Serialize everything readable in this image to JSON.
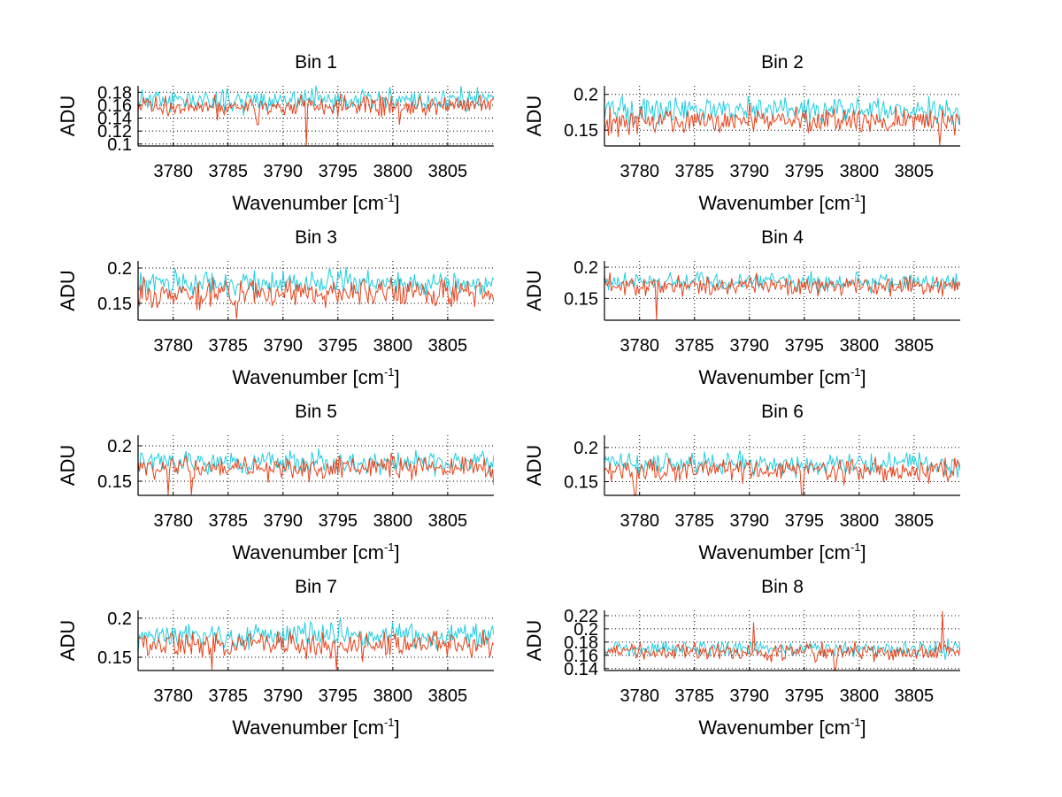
{
  "figure": {
    "colors": {
      "series1": "#1fcde0",
      "series2": "#e8431c",
      "axis": "#000000",
      "grid": "#000000"
    }
  },
  "chart_data": [
    {
      "type": "line",
      "title": "Bin 1",
      "xlabel": "Wavenumber [cm",
      "xlabel_sup": "-1",
      "xlabel_end": "]",
      "ylabel": "ADU",
      "xlim": [
        3776.8,
        3809.2
      ],
      "ylim": [
        0.097,
        0.19
      ],
      "xticks": [
        "3780",
        "3785",
        "3790",
        "3795",
        "3800",
        "3805"
      ],
      "xtick_values": [
        3780,
        3785,
        3790,
        3795,
        3800,
        3805
      ],
      "yticks": [
        "0.1",
        "0.12",
        "0.14",
        "0.16",
        "0.18"
      ],
      "ytick_values": [
        0.1,
        0.12,
        0.14,
        0.16,
        0.18
      ],
      "grid": true,
      "series": [
        {
          "name": "cyan",
          "mean": 0.168,
          "noise": 0.011,
          "seed": 11,
          "dips": []
        },
        {
          "name": "red",
          "mean": 0.158,
          "noise": 0.01,
          "seed": 12,
          "dips": [
            [
              3792.1,
              0.097
            ],
            [
              3787.7,
              0.13
            ],
            [
              3800.6,
              0.13
            ]
          ]
        }
      ]
    },
    {
      "type": "line",
      "title": "Bin 2",
      "xlabel": "Wavenumber [cm",
      "xlabel_sup": "-1",
      "xlabel_end": "]",
      "ylabel": "ADU",
      "xlim": [
        3776.8,
        3809.2
      ],
      "ylim": [
        0.128,
        0.212
      ],
      "xticks": [
        "3780",
        "3785",
        "3790",
        "3795",
        "3800",
        "3805"
      ],
      "xtick_values": [
        3780,
        3785,
        3790,
        3795,
        3800,
        3805
      ],
      "yticks": [
        "0.15",
        "0.2"
      ],
      "ytick_values": [
        0.15,
        0.2
      ],
      "grid": true,
      "series": [
        {
          "name": "cyan",
          "mean": 0.178,
          "noise": 0.011,
          "seed": 21,
          "dips": []
        },
        {
          "name": "red",
          "mean": 0.163,
          "noise": 0.011,
          "seed": 22,
          "dips": [
            [
              3807.3,
              0.129
            ]
          ]
        }
      ]
    },
    {
      "type": "line",
      "title": "Bin 3",
      "xlabel": "Wavenumber [cm",
      "xlabel_sup": "-1",
      "xlabel_end": "]",
      "ylabel": "ADU",
      "xlim": [
        3776.8,
        3809.2
      ],
      "ylim": [
        0.126,
        0.21
      ],
      "xticks": [
        "3780",
        "3785",
        "3790",
        "3795",
        "3800",
        "3805"
      ],
      "xtick_values": [
        3780,
        3785,
        3790,
        3795,
        3800,
        3805
      ],
      "yticks": [
        "0.15",
        "0.2"
      ],
      "ytick_values": [
        0.15,
        0.2
      ],
      "grid": true,
      "series": [
        {
          "name": "cyan",
          "mean": 0.178,
          "noise": 0.011,
          "seed": 31,
          "dips": []
        },
        {
          "name": "red",
          "mean": 0.165,
          "noise": 0.012,
          "seed": 32,
          "dips": [
            [
              3785.8,
              0.128
            ]
          ]
        }
      ]
    },
    {
      "type": "line",
      "title": "Bin 4",
      "xlabel": "Wavenumber [cm",
      "xlabel_sup": "-1",
      "xlabel_end": "]",
      "ylabel": "ADU",
      "xlim": [
        3776.8,
        3809.2
      ],
      "ylim": [
        0.115,
        0.21
      ],
      "xticks": [
        "3780",
        "3785",
        "3790",
        "3795",
        "3800",
        "3805"
      ],
      "xtick_values": [
        3780,
        3785,
        3790,
        3795,
        3800,
        3805
      ],
      "yticks": [
        "0.15",
        "0.2"
      ],
      "ytick_values": [
        0.15,
        0.2
      ],
      "grid": true,
      "series": [
        {
          "name": "cyan",
          "mean": 0.176,
          "noise": 0.009,
          "seed": 41,
          "dips": []
        },
        {
          "name": "red",
          "mean": 0.17,
          "noise": 0.01,
          "seed": 42,
          "dips": [
            [
              3781.5,
              0.116
            ]
          ]
        }
      ]
    },
    {
      "type": "line",
      "title": "Bin 5",
      "xlabel": "Wavenumber [cm",
      "xlabel_sup": "-1",
      "xlabel_end": "]",
      "ylabel": "ADU",
      "xlim": [
        3776.8,
        3809.2
      ],
      "ylim": [
        0.13,
        0.215
      ],
      "xticks": [
        "3780",
        "3785",
        "3790",
        "3795",
        "3800",
        "3805"
      ],
      "xtick_values": [
        3780,
        3785,
        3790,
        3795,
        3800,
        3805
      ],
      "yticks": [
        "0.15",
        "0.2"
      ],
      "ytick_values": [
        0.15,
        0.2
      ],
      "grid": true,
      "series": [
        {
          "name": "cyan",
          "mean": 0.176,
          "noise": 0.01,
          "seed": 51,
          "dips": []
        },
        {
          "name": "red",
          "mean": 0.168,
          "noise": 0.011,
          "seed": 52,
          "dips": [
            [
              3779.5,
              0.131
            ],
            [
              3781.7,
              0.131
            ]
          ]
        }
      ]
    },
    {
      "type": "line",
      "title": "Bin 6",
      "xlabel": "Wavenumber [cm",
      "xlabel_sup": "-1",
      "xlabel_end": "]",
      "ylabel": "ADU",
      "xlim": [
        3776.8,
        3809.2
      ],
      "ylim": [
        0.13,
        0.218
      ],
      "xticks": [
        "3780",
        "3785",
        "3790",
        "3795",
        "3800",
        "3805"
      ],
      "xtick_values": [
        3780,
        3785,
        3790,
        3795,
        3800,
        3805
      ],
      "yticks": [
        "0.15",
        "0.2"
      ],
      "ytick_values": [
        0.15,
        0.2
      ],
      "grid": true,
      "series": [
        {
          "name": "cyan",
          "mean": 0.176,
          "noise": 0.01,
          "seed": 61,
          "dips": []
        },
        {
          "name": "red",
          "mean": 0.167,
          "noise": 0.01,
          "seed": 62,
          "dips": [
            [
              3779.6,
              0.131
            ],
            [
              3794.8,
              0.132
            ]
          ]
        }
      ]
    },
    {
      "type": "line",
      "title": "Bin 7",
      "xlabel": "Wavenumber [cm",
      "xlabel_sup": "-1",
      "xlabel_end": "]",
      "ylabel": "ADU",
      "xlim": [
        3776.8,
        3809.2
      ],
      "ylim": [
        0.133,
        0.21
      ],
      "xticks": [
        "3780",
        "3785",
        "3790",
        "3795",
        "3800",
        "3805"
      ],
      "xtick_values": [
        3780,
        3785,
        3790,
        3795,
        3800,
        3805
      ],
      "yticks": [
        "0.15",
        "0.2"
      ],
      "ytick_values": [
        0.15,
        0.2
      ],
      "grid": true,
      "series": [
        {
          "name": "cyan",
          "mean": 0.178,
          "noise": 0.01,
          "seed": 71,
          "dips": []
        },
        {
          "name": "red",
          "mean": 0.166,
          "noise": 0.011,
          "seed": 72,
          "dips": [
            [
              3794.9,
              0.134
            ],
            [
              3783.5,
              0.134
            ]
          ]
        }
      ]
    },
    {
      "type": "line",
      "title": "Bin 8",
      "xlabel": "Wavenumber [cm",
      "xlabel_sup": "-1",
      "xlabel_end": "]",
      "ylabel": "ADU",
      "xlim": [
        3776.8,
        3809.2
      ],
      "ylim": [
        0.137,
        0.228
      ],
      "xticks": [
        "3780",
        "3785",
        "3790",
        "3795",
        "3800",
        "3805"
      ],
      "xtick_values": [
        3780,
        3785,
        3790,
        3795,
        3800,
        3805
      ],
      "yticks": [
        "0.14",
        "0.16",
        "0.18",
        "0.2",
        "0.22"
      ],
      "ytick_values": [
        0.14,
        0.16,
        0.18,
        0.2,
        0.22
      ],
      "grid": true,
      "series": [
        {
          "name": "cyan",
          "mean": 0.17,
          "noise": 0.008,
          "seed": 81,
          "dips": []
        },
        {
          "name": "red",
          "mean": 0.165,
          "noise": 0.008,
          "seed": 82,
          "dips": [
            [
              3797.8,
              0.138
            ]
          ],
          "peaks": [
            [
              3807.6,
              0.227
            ],
            [
              3790.4,
              0.21
            ]
          ]
        }
      ]
    }
  ]
}
